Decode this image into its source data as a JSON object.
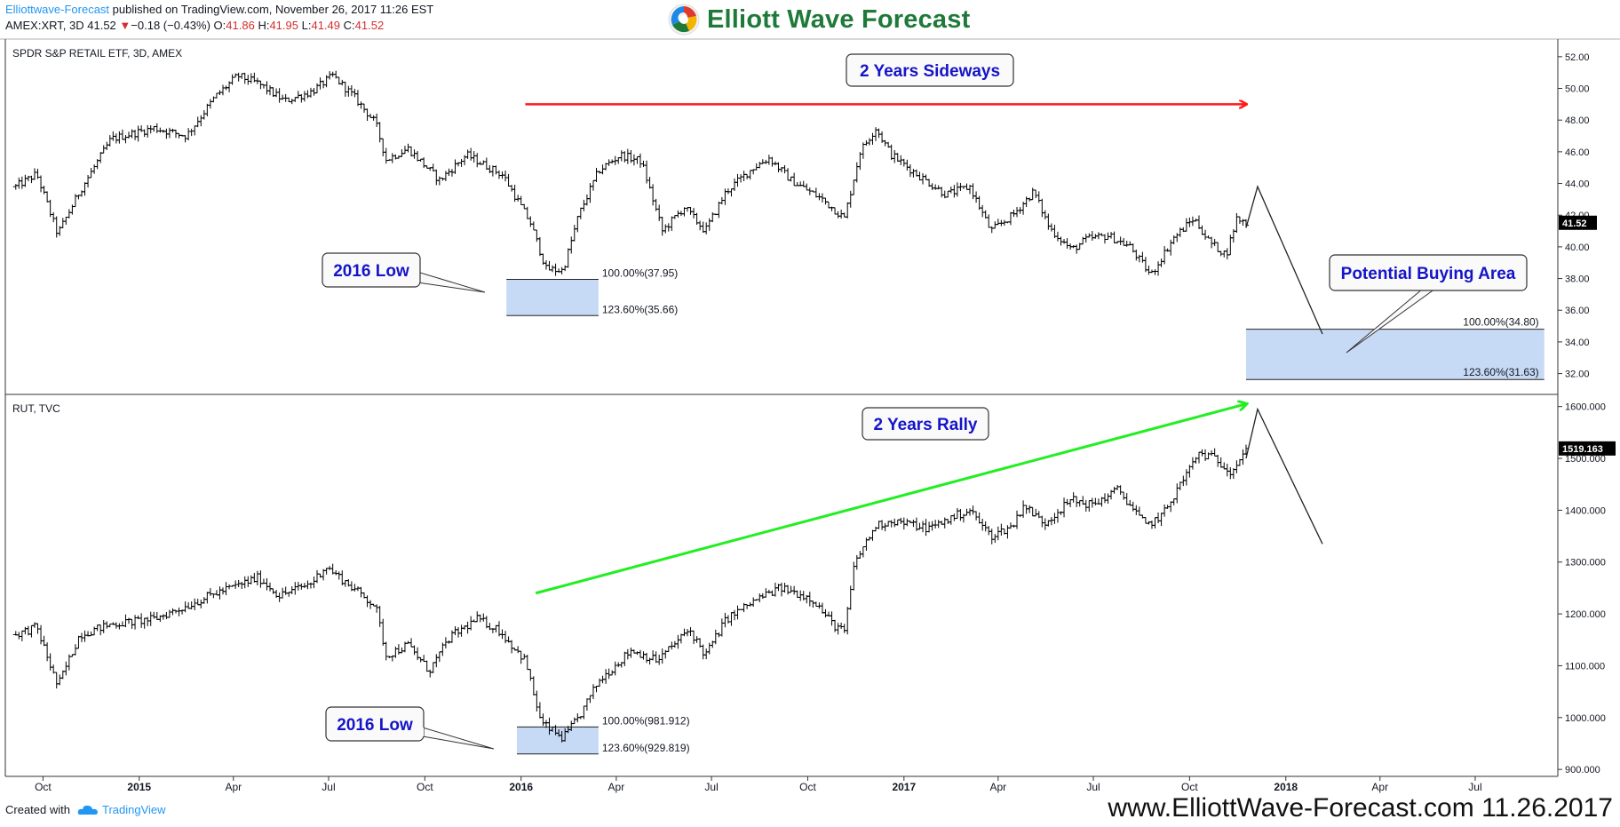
{
  "header": {
    "publisher": "Elliottwave-Forecast",
    "published_text": "published on TradingView.com, November 26, 2017 11:26 EST",
    "symbol": "AMEX:XRT, 3D",
    "last": "41.52",
    "change": "−0.18 (−0.43%)",
    "open_label": "O:",
    "open": "41.86",
    "high_label": "H:",
    "high": "41.95",
    "low_label": "L:",
    "low": "41.49",
    "close_label": "C:",
    "close": "41.52"
  },
  "logo": {
    "text": "Elliott Wave Forecast",
    "icon": "ewf-swirl-logo-icon"
  },
  "footer": {
    "created_with": "Created with",
    "tv_brand": "TradingView",
    "tv_icon": "tradingview-cloud-icon",
    "watermark": "www.ElliottWave-Forecast.com 11.26.2017"
  },
  "colors": {
    "accent_blue": "#1515c8",
    "zone_fill": "#c6d9f5",
    "red_arrow": "#ff1a1a",
    "green_arrow": "#22ee22",
    "bar": "#000000",
    "publisher_link": "#2196f3",
    "logo_green": "#1f7a3a"
  },
  "chart_data": [
    {
      "type": "ohlc",
      "title": "SPDR S&P RETAIL ETF, 3D, AMEX",
      "ylim": [
        30.8,
        53.0
      ],
      "y_ticks": [
        "52.00",
        "50.00",
        "48.00",
        "46.00",
        "44.00",
        "42.00",
        "40.00",
        "38.00",
        "36.00",
        "34.00",
        "32.00"
      ],
      "last_price": "41.52",
      "x_ticks": [
        "Oct",
        "2015",
        "Apr",
        "Jul",
        "Oct",
        "2016",
        "Apr",
        "Jul",
        "Oct",
        "2017",
        "Apr",
        "Jul",
        "Oct",
        "2018",
        "Apr",
        "Jul"
      ],
      "bold_x_ticks": [
        "2015",
        "2016",
        "2017",
        "2018"
      ],
      "approx_close_path": [
        [
          "2014-09-05",
          43.8
        ],
        [
          "2014-09-25",
          44.6
        ],
        [
          "2014-10-15",
          40.8
        ],
        [
          "2014-11-05",
          43.5
        ],
        [
          "2014-12-05",
          46.8
        ],
        [
          "2015-01-15",
          47.5
        ],
        [
          "2015-02-15",
          47.0
        ],
        [
          "2015-03-15",
          49.5
        ],
        [
          "2015-04-05",
          50.8
        ],
        [
          "2015-04-25",
          50.3
        ],
        [
          "2015-05-20",
          49.2
        ],
        [
          "2015-06-15",
          49.8
        ],
        [
          "2015-07-05",
          50.8
        ],
        [
          "2015-07-25",
          49.5
        ],
        [
          "2015-08-15",
          47.8
        ],
        [
          "2015-08-25",
          45.5
        ],
        [
          "2015-09-15",
          46.2
        ],
        [
          "2015-10-15",
          44.2
        ],
        [
          "2015-11-10",
          45.8
        ],
        [
          "2015-12-15",
          44.5
        ],
        [
          "2016-01-10",
          41.5
        ],
        [
          "2016-01-25",
          38.6
        ],
        [
          "2016-02-10",
          38.5
        ],
        [
          "2016-02-25",
          42.0
        ],
        [
          "2016-03-15",
          44.8
        ],
        [
          "2016-04-05",
          45.8
        ],
        [
          "2016-04-25",
          45.4
        ],
        [
          "2016-05-15",
          41.0
        ],
        [
          "2016-06-05",
          42.5
        ],
        [
          "2016-06-25",
          41.0
        ],
        [
          "2016-07-15",
          43.5
        ],
        [
          "2016-08-10",
          45.0
        ],
        [
          "2016-08-25",
          45.6
        ],
        [
          "2016-09-15",
          44.2
        ],
        [
          "2016-10-15",
          43.0
        ],
        [
          "2016-11-05",
          41.8
        ],
        [
          "2016-11-20",
          46.0
        ],
        [
          "2016-12-05",
          47.5
        ],
        [
          "2016-12-20",
          45.8
        ],
        [
          "2017-01-15",
          44.5
        ],
        [
          "2017-02-10",
          43.3
        ],
        [
          "2017-03-05",
          43.8
        ],
        [
          "2017-03-25",
          41.0
        ],
        [
          "2017-04-15",
          42.0
        ],
        [
          "2017-05-05",
          43.5
        ],
        [
          "2017-05-20",
          41.2
        ],
        [
          "2017-06-10",
          39.8
        ],
        [
          "2017-06-25",
          40.5
        ],
        [
          "2017-07-15",
          40.7
        ],
        [
          "2017-08-05",
          40.0
        ],
        [
          "2017-08-25",
          38.2
        ],
        [
          "2017-09-15",
          40.5
        ],
        [
          "2017-10-05",
          41.8
        ],
        [
          "2017-10-20",
          40.3
        ],
        [
          "2017-11-05",
          39.5
        ],
        [
          "2017-11-15",
          41.8
        ],
        [
          "2017-11-24",
          41.52
        ]
      ],
      "projection": [
        [
          "2017-11-24",
          41.2
        ],
        [
          "2017-12-05",
          43.8
        ],
        [
          "2018-02-05",
          34.5
        ]
      ],
      "fib_zones": [
        {
          "x_start": "2015-12-18",
          "x_end": "2016-03-15",
          "top": 37.95,
          "bottom": 35.66,
          "label_top": "100.00%(37.95)",
          "label_bottom": "123.60%(35.66)"
        },
        {
          "x_start": "2017-11-24",
          "x_end": "2018-09-05",
          "top": 34.8,
          "bottom": 31.63,
          "label_top": "100.00%(34.80)",
          "label_bottom": "123.60%(31.63)"
        }
      ],
      "annotations": [
        {
          "text": "2 Years Sideways",
          "name": "sideways-callout"
        },
        {
          "text": "2016 Low",
          "name": "xrt-low-callout"
        },
        {
          "text": "Potential Buying Area",
          "name": "buying-area-callout"
        }
      ],
      "trend_arrow": {
        "from": [
          "2016-01-05",
          49.0
        ],
        "to": [
          "2017-11-24",
          49.0
        ],
        "color": "red"
      }
    },
    {
      "type": "ohlc",
      "title": "RUT, TVC",
      "ylim": [
        890,
        1620
      ],
      "y_ticks": [
        "1600.000",
        "1500.000",
        "1400.000",
        "1300.000",
        "1200.000",
        "1100.000",
        "1000.000",
        "900.000"
      ],
      "last_price": "1519.163",
      "approx_close_path": [
        [
          "2014-09-05",
          1160
        ],
        [
          "2014-09-25",
          1175
        ],
        [
          "2014-10-15",
          1060
        ],
        [
          "2014-11-05",
          1160
        ],
        [
          "2014-12-05",
          1180
        ],
        [
          "2015-01-15",
          1190
        ],
        [
          "2015-02-15",
          1215
        ],
        [
          "2015-03-15",
          1240
        ],
        [
          "2015-04-05",
          1255
        ],
        [
          "2015-04-25",
          1270
        ],
        [
          "2015-05-15",
          1235
        ],
        [
          "2015-06-15",
          1260
        ],
        [
          "2015-06-28",
          1292
        ],
        [
          "2015-07-15",
          1265
        ],
        [
          "2015-08-15",
          1215
        ],
        [
          "2015-08-25",
          1120
        ],
        [
          "2015-09-15",
          1140
        ],
        [
          "2015-10-05",
          1090
        ],
        [
          "2015-10-25",
          1155
        ],
        [
          "2015-11-20",
          1190
        ],
        [
          "2015-12-10",
          1170
        ],
        [
          "2016-01-05",
          1110
        ],
        [
          "2016-01-20",
          990
        ],
        [
          "2016-02-10",
          960
        ],
        [
          "2016-02-25",
          1000
        ],
        [
          "2016-03-15",
          1070
        ],
        [
          "2016-04-15",
          1130
        ],
        [
          "2016-05-10",
          1110
        ],
        [
          "2016-06-10",
          1170
        ],
        [
          "2016-06-25",
          1120
        ],
        [
          "2016-07-15",
          1190
        ],
        [
          "2016-08-15",
          1230
        ],
        [
          "2016-09-05",
          1250
        ],
        [
          "2016-10-05",
          1230
        ],
        [
          "2016-10-25",
          1180
        ],
        [
          "2016-11-05",
          1165
        ],
        [
          "2016-11-15",
          1300
        ],
        [
          "2016-12-05",
          1370
        ],
        [
          "2016-12-20",
          1380
        ],
        [
          "2017-01-25",
          1365
        ],
        [
          "2017-02-20",
          1390
        ],
        [
          "2017-03-05",
          1400
        ],
        [
          "2017-03-25",
          1350
        ],
        [
          "2017-04-15",
          1370
        ],
        [
          "2017-04-25",
          1410
        ],
        [
          "2017-05-15",
          1375
        ],
        [
          "2017-06-10",
          1420
        ],
        [
          "2017-06-30",
          1410
        ],
        [
          "2017-07-25",
          1440
        ],
        [
          "2017-08-20",
          1370
        ],
        [
          "2017-09-05",
          1390
        ],
        [
          "2017-09-25",
          1460
        ],
        [
          "2017-10-10",
          1510
        ],
        [
          "2017-10-25",
          1500
        ],
        [
          "2017-11-10",
          1475
        ],
        [
          "2017-11-24",
          1519
        ]
      ],
      "projection": [
        [
          "2017-11-24",
          1500
        ],
        [
          "2017-12-05",
          1595
        ],
        [
          "2018-02-05",
          1335
        ]
      ],
      "fib_zones": [
        {
          "x_start": "2015-12-28",
          "x_end": "2016-03-15",
          "top": 981.912,
          "bottom": 929.819,
          "label_top": "100.00%(981.912)",
          "label_bottom": "123.60%(929.819)"
        }
      ],
      "annotations": [
        {
          "text": "2 Years Rally",
          "name": "rally-callout"
        },
        {
          "text": "2016 Low",
          "name": "rut-low-callout"
        }
      ],
      "trend_arrow": {
        "from": [
          "2016-01-15",
          1240
        ],
        "to": [
          "2017-11-24",
          1605
        ],
        "color": "green"
      }
    }
  ]
}
